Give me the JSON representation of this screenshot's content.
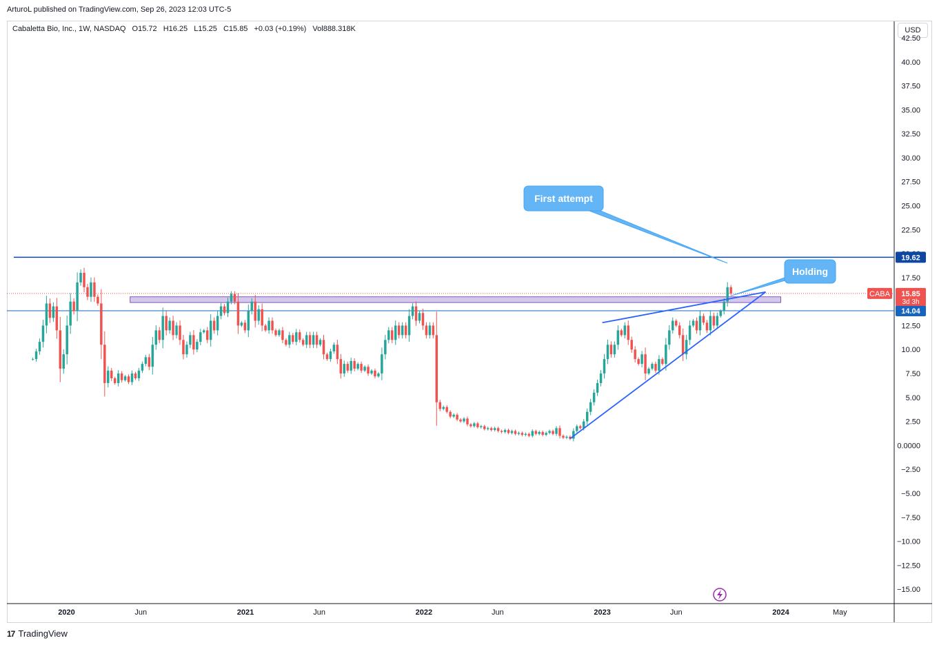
{
  "header": {
    "publisher_line": "ArturoL published on TradingView.com, Sep 26, 2023 12:03 UTC-5",
    "symbol": "Cabaletta Bio, Inc., 1W, NASDAQ",
    "open": "O15.72",
    "high": "H16.25",
    "low": "L15.25",
    "close": "C15.85",
    "change": "+0.03 (+0.19%)",
    "volume": "Vol888.318K",
    "currency": "USD"
  },
  "footer": {
    "brand": "TradingView",
    "logo_text": "17"
  },
  "colors": {
    "up": "#26a69a",
    "down": "#ef5350",
    "resistance": "#0d47a1",
    "zone": "#b39ddb",
    "trend": "#2962ff",
    "callout": "#64b5f6",
    "price_badge": "#ef5350",
    "support": "#1565c0"
  },
  "chart_data": {
    "type": "candlestick",
    "symbol": "CABA",
    "ylim": [
      -16.5,
      42.5
    ],
    "xlim": [
      "2019-09-01",
      "2024-08-20"
    ],
    "y_ticks": [
      "42.50",
      "40.00",
      "37.50",
      "35.00",
      "32.50",
      "30.00",
      "27.50",
      "25.00",
      "22.50",
      "20.00",
      "17.50",
      "15.00",
      "12.50",
      "10.00",
      "7.50",
      "5.00",
      "2.50",
      "0.0000",
      "−2.50",
      "−5.00",
      "−7.50",
      "−10.00",
      "−12.50",
      "−15.00"
    ],
    "x_ticks": [
      {
        "label": "2020",
        "date": "2020-01-01",
        "bold": true
      },
      {
        "label": "Jun",
        "date": "2020-06-01",
        "bold": false
      },
      {
        "label": "2021",
        "date": "2021-01-01",
        "bold": true
      },
      {
        "label": "Jun",
        "date": "2021-06-01",
        "bold": false
      },
      {
        "label": "2022",
        "date": "2022-01-01",
        "bold": true
      },
      {
        "label": "Jun",
        "date": "2022-06-01",
        "bold": false
      },
      {
        "label": "2023",
        "date": "2023-01-01",
        "bold": true
      },
      {
        "label": "Jun",
        "date": "2023-06-01",
        "bold": false
      },
      {
        "label": "2024",
        "date": "2024-01-01",
        "bold": true
      },
      {
        "label": "May",
        "date": "2024-05-01",
        "bold": false
      }
    ],
    "weekly_closes": [
      {
        "date": "2019-10-24",
        "close": 9.0
      },
      {
        "date": "2019-10-31",
        "close": 9.8
      },
      {
        "date": "2019-11-07",
        "close": 10.8
      },
      {
        "date": "2019-11-14",
        "close": 12.5
      },
      {
        "date": "2019-11-21",
        "close": 14.8
      },
      {
        "date": "2019-11-28",
        "close": 13.3
      },
      {
        "date": "2019-12-05",
        "close": 14.5
      },
      {
        "date": "2019-12-12",
        "close": 12.0
      },
      {
        "date": "2019-12-19",
        "close": 8.0
      },
      {
        "date": "2019-12-26",
        "close": 9.5
      },
      {
        "date": "2020-01-02",
        "close": 12.5
      },
      {
        "date": "2020-01-09",
        "close": 15.0
      },
      {
        "date": "2020-01-16",
        "close": 14.0
      },
      {
        "date": "2020-01-23",
        "close": 17.0
      },
      {
        "date": "2020-01-30",
        "close": 18.0
      },
      {
        "date": "2020-02-06",
        "close": 16.5
      },
      {
        "date": "2020-02-13",
        "close": 15.5
      },
      {
        "date": "2020-02-20",
        "close": 17.0
      },
      {
        "date": "2020-02-27",
        "close": 15.5
      },
      {
        "date": "2020-03-05",
        "close": 14.8
      },
      {
        "date": "2020-03-12",
        "close": 10.5
      },
      {
        "date": "2020-03-19",
        "close": 6.5
      },
      {
        "date": "2020-03-26",
        "close": 7.8
      },
      {
        "date": "2020-04-02",
        "close": 7.0
      },
      {
        "date": "2020-04-09",
        "close": 6.5
      },
      {
        "date": "2020-04-16",
        "close": 7.5
      },
      {
        "date": "2020-04-23",
        "close": 6.8
      },
      {
        "date": "2020-04-30",
        "close": 7.2
      },
      {
        "date": "2020-05-07",
        "close": 6.6
      },
      {
        "date": "2020-05-14",
        "close": 7.5
      },
      {
        "date": "2020-05-21",
        "close": 7.0
      },
      {
        "date": "2020-05-28",
        "close": 7.8
      },
      {
        "date": "2020-06-04",
        "close": 8.5
      },
      {
        "date": "2020-06-11",
        "close": 9.2
      },
      {
        "date": "2020-06-18",
        "close": 8.2
      },
      {
        "date": "2020-06-25",
        "close": 10.5
      },
      {
        "date": "2020-07-02",
        "close": 12.0
      },
      {
        "date": "2020-07-09",
        "close": 11.0
      },
      {
        "date": "2020-07-16",
        "close": 13.5
      },
      {
        "date": "2020-07-23",
        "close": 12.0
      },
      {
        "date": "2020-07-30",
        "close": 13.0
      },
      {
        "date": "2020-08-06",
        "close": 11.5
      },
      {
        "date": "2020-08-13",
        "close": 12.5
      },
      {
        "date": "2020-08-20",
        "close": 11.0
      },
      {
        "date": "2020-08-27",
        "close": 9.5
      },
      {
        "date": "2020-09-03",
        "close": 10.5
      },
      {
        "date": "2020-09-10",
        "close": 11.5
      },
      {
        "date": "2020-09-17",
        "close": 10.0
      },
      {
        "date": "2020-09-24",
        "close": 10.8
      },
      {
        "date": "2020-10-01",
        "close": 11.8
      },
      {
        "date": "2020-10-08",
        "close": 12.0
      },
      {
        "date": "2020-10-15",
        "close": 11.0
      },
      {
        "date": "2020-10-22",
        "close": 13.0
      },
      {
        "date": "2020-10-29",
        "close": 12.0
      },
      {
        "date": "2020-11-05",
        "close": 13.5
      },
      {
        "date": "2020-11-12",
        "close": 14.5
      },
      {
        "date": "2020-11-19",
        "close": 13.8
      },
      {
        "date": "2020-11-26",
        "close": 15.0
      },
      {
        "date": "2020-12-03",
        "close": 15.8
      },
      {
        "date": "2020-12-10",
        "close": 15.0
      },
      {
        "date": "2020-12-17",
        "close": 12.5
      },
      {
        "date": "2020-12-24",
        "close": 12.8
      },
      {
        "date": "2020-12-31",
        "close": 12.0
      },
      {
        "date": "2021-01-07",
        "close": 14.0
      },
      {
        "date": "2021-01-14",
        "close": 15.0
      },
      {
        "date": "2021-01-21",
        "close": 13.0
      },
      {
        "date": "2021-01-28",
        "close": 14.2
      },
      {
        "date": "2021-02-04",
        "close": 12.5
      },
      {
        "date": "2021-02-11",
        "close": 12.0
      },
      {
        "date": "2021-02-18",
        "close": 13.0
      },
      {
        "date": "2021-02-25",
        "close": 12.0
      },
      {
        "date": "2021-03-04",
        "close": 11.5
      },
      {
        "date": "2021-03-11",
        "close": 12.0
      },
      {
        "date": "2021-03-18",
        "close": 11.0
      },
      {
        "date": "2021-03-25",
        "close": 10.5
      },
      {
        "date": "2021-04-01",
        "close": 11.5
      },
      {
        "date": "2021-04-08",
        "close": 10.8
      },
      {
        "date": "2021-04-15",
        "close": 11.8
      },
      {
        "date": "2021-04-22",
        "close": 11.0
      },
      {
        "date": "2021-04-29",
        "close": 10.5
      },
      {
        "date": "2021-05-06",
        "close": 11.5
      },
      {
        "date": "2021-05-13",
        "close": 10.5
      },
      {
        "date": "2021-05-20",
        "close": 11.5
      },
      {
        "date": "2021-05-27",
        "close": 10.5
      },
      {
        "date": "2021-06-03",
        "close": 11.0
      },
      {
        "date": "2021-06-10",
        "close": 9.5
      },
      {
        "date": "2021-06-17",
        "close": 9.0
      },
      {
        "date": "2021-06-24",
        "close": 9.8
      },
      {
        "date": "2021-07-01",
        "close": 10.5
      },
      {
        "date": "2021-07-08",
        "close": 9.0
      },
      {
        "date": "2021-07-15",
        "close": 7.5
      },
      {
        "date": "2021-07-22",
        "close": 8.5
      },
      {
        "date": "2021-07-29",
        "close": 7.8
      },
      {
        "date": "2021-08-05",
        "close": 8.8
      },
      {
        "date": "2021-08-12",
        "close": 8.0
      },
      {
        "date": "2021-08-19",
        "close": 8.5
      },
      {
        "date": "2021-08-26",
        "close": 7.8
      },
      {
        "date": "2021-09-02",
        "close": 8.2
      },
      {
        "date": "2021-09-09",
        "close": 7.5
      },
      {
        "date": "2021-09-16",
        "close": 7.8
      },
      {
        "date": "2021-09-23",
        "close": 7.2
      },
      {
        "date": "2021-09-30",
        "close": 7.5
      },
      {
        "date": "2021-10-07",
        "close": 9.5
      },
      {
        "date": "2021-10-14",
        "close": 11.0
      },
      {
        "date": "2021-10-21",
        "close": 12.0
      },
      {
        "date": "2021-10-28",
        "close": 11.0
      },
      {
        "date": "2021-11-04",
        "close": 12.5
      },
      {
        "date": "2021-11-11",
        "close": 11.5
      },
      {
        "date": "2021-11-18",
        "close": 12.5
      },
      {
        "date": "2021-11-25",
        "close": 11.5
      },
      {
        "date": "2021-12-02",
        "close": 13.5
      },
      {
        "date": "2021-12-09",
        "close": 14.5
      },
      {
        "date": "2021-12-16",
        "close": 13.0
      },
      {
        "date": "2021-12-23",
        "close": 13.8
      },
      {
        "date": "2021-12-30",
        "close": 12.5
      },
      {
        "date": "2022-01-06",
        "close": 11.5
      },
      {
        "date": "2022-01-13",
        "close": 12.5
      },
      {
        "date": "2022-01-20",
        "close": 11.5
      },
      {
        "date": "2022-01-27",
        "close": 4.5
      },
      {
        "date": "2022-02-03",
        "close": 3.8
      },
      {
        "date": "2022-02-10",
        "close": 4.0
      },
      {
        "date": "2022-02-17",
        "close": 3.5
      },
      {
        "date": "2022-02-24",
        "close": 3.0
      },
      {
        "date": "2022-03-03",
        "close": 3.2
      },
      {
        "date": "2022-03-10",
        "close": 2.7
      },
      {
        "date": "2022-03-17",
        "close": 2.5
      },
      {
        "date": "2022-03-24",
        "close": 2.8
      },
      {
        "date": "2022-03-31",
        "close": 2.2
      },
      {
        "date": "2022-04-07",
        "close": 2.0
      },
      {
        "date": "2022-04-14",
        "close": 2.3
      },
      {
        "date": "2022-04-21",
        "close": 1.9
      },
      {
        "date": "2022-04-28",
        "close": 2.0
      },
      {
        "date": "2022-05-05",
        "close": 1.7
      },
      {
        "date": "2022-05-12",
        "close": 1.8
      },
      {
        "date": "2022-05-19",
        "close": 1.6
      },
      {
        "date": "2022-05-26",
        "close": 1.8
      },
      {
        "date": "2022-06-02",
        "close": 1.5
      },
      {
        "date": "2022-06-09",
        "close": 1.4
      },
      {
        "date": "2022-06-16",
        "close": 1.6
      },
      {
        "date": "2022-06-23",
        "close": 1.3
      },
      {
        "date": "2022-06-30",
        "close": 1.5
      },
      {
        "date": "2022-07-07",
        "close": 1.2
      },
      {
        "date": "2022-07-14",
        "close": 1.3
      },
      {
        "date": "2022-07-21",
        "close": 1.1
      },
      {
        "date": "2022-07-28",
        "close": 1.2
      },
      {
        "date": "2022-08-04",
        "close": 1.0
      },
      {
        "date": "2022-08-11",
        "close": 1.5
      },
      {
        "date": "2022-08-18",
        "close": 1.2
      },
      {
        "date": "2022-08-25",
        "close": 1.4
      },
      {
        "date": "2022-09-01",
        "close": 1.1
      },
      {
        "date": "2022-09-08",
        "close": 1.3
      },
      {
        "date": "2022-09-15",
        "close": 1.5
      },
      {
        "date": "2022-09-22",
        "close": 1.2
      },
      {
        "date": "2022-09-29",
        "close": 1.8
      },
      {
        "date": "2022-10-06",
        "close": 1.0
      },
      {
        "date": "2022-10-13",
        "close": 0.8
      },
      {
        "date": "2022-10-20",
        "close": 0.9
      },
      {
        "date": "2022-10-27",
        "close": 0.7
      },
      {
        "date": "2022-11-03",
        "close": 1.5
      },
      {
        "date": "2022-11-10",
        "close": 2.0
      },
      {
        "date": "2022-11-17",
        "close": 1.8
      },
      {
        "date": "2022-11-24",
        "close": 2.5
      },
      {
        "date": "2022-12-01",
        "close": 3.5
      },
      {
        "date": "2022-12-08",
        "close": 4.5
      },
      {
        "date": "2022-12-15",
        "close": 5.5
      },
      {
        "date": "2022-12-22",
        "close": 6.5
      },
      {
        "date": "2022-12-29",
        "close": 7.5
      },
      {
        "date": "2023-01-05",
        "close": 9.0
      },
      {
        "date": "2023-01-12",
        "close": 10.5
      },
      {
        "date": "2023-01-19",
        "close": 9.5
      },
      {
        "date": "2023-01-26",
        "close": 10.5
      },
      {
        "date": "2023-02-02",
        "close": 12.0
      },
      {
        "date": "2023-02-09",
        "close": 11.5
      },
      {
        "date": "2023-02-16",
        "close": 12.5
      },
      {
        "date": "2023-02-23",
        "close": 11.0
      },
      {
        "date": "2023-03-02",
        "close": 10.0
      },
      {
        "date": "2023-03-09",
        "close": 9.0
      },
      {
        "date": "2023-03-16",
        "close": 8.5
      },
      {
        "date": "2023-03-23",
        "close": 9.5
      },
      {
        "date": "2023-03-30",
        "close": 7.5
      },
      {
        "date": "2023-04-06",
        "close": 8.0
      },
      {
        "date": "2023-04-13",
        "close": 8.5
      },
      {
        "date": "2023-04-20",
        "close": 7.8
      },
      {
        "date": "2023-04-27",
        "close": 9.0
      },
      {
        "date": "2023-05-04",
        "close": 8.5
      },
      {
        "date": "2023-05-11",
        "close": 10.5
      },
      {
        "date": "2023-05-18",
        "close": 12.0
      },
      {
        "date": "2023-05-25",
        "close": 13.0
      },
      {
        "date": "2023-06-01",
        "close": 12.5
      },
      {
        "date": "2023-06-08",
        "close": 11.5
      },
      {
        "date": "2023-06-15",
        "close": 9.5
      },
      {
        "date": "2023-06-22",
        "close": 11.0
      },
      {
        "date": "2023-06-29",
        "close": 12.5
      },
      {
        "date": "2023-07-06",
        "close": 13.0
      },
      {
        "date": "2023-07-13",
        "close": 12.0
      },
      {
        "date": "2023-07-20",
        "close": 13.5
      },
      {
        "date": "2023-07-27",
        "close": 12.8
      },
      {
        "date": "2023-08-03",
        "close": 12.0
      },
      {
        "date": "2023-08-10",
        "close": 13.5
      },
      {
        "date": "2023-08-17",
        "close": 12.5
      },
      {
        "date": "2023-08-24",
        "close": 13.5
      },
      {
        "date": "2023-08-31",
        "close": 14.0
      },
      {
        "date": "2023-09-07",
        "close": 15.0
      },
      {
        "date": "2023-09-14",
        "close": 16.5
      },
      {
        "date": "2023-09-21",
        "close": 15.85
      }
    ],
    "levels": {
      "resistance": {
        "value": 19.62,
        "label": "19.62",
        "from": "2019-09-15"
      },
      "support": {
        "value": 14.04,
        "label": "14.04"
      },
      "last_price": {
        "value": 15.85,
        "label": "15.85",
        "symbol": "CABA",
        "countdown": "3d 3h"
      },
      "zone": {
        "from_value": 14.9,
        "to_value": 15.5,
        "start": "2020-05-10",
        "end": "2024-01-01"
      }
    },
    "trendlines": [
      {
        "name": "rising-support",
        "from": {
          "date": "2022-10-27",
          "value": 0.7
        },
        "to": {
          "date": "2023-12-01",
          "value": 16.0
        }
      },
      {
        "name": "upper-channel",
        "from": {
          "date": "2023-01-01",
          "value": 12.8
        },
        "to": {
          "date": "2023-12-01",
          "value": 16.0
        }
      }
    ],
    "annotations": [
      {
        "text": "First attempt",
        "target_date": "2023-09-14",
        "target_value": 19.0
      },
      {
        "text": "Holding",
        "target_date": "2023-09-21",
        "target_value": 15.6
      }
    ]
  }
}
